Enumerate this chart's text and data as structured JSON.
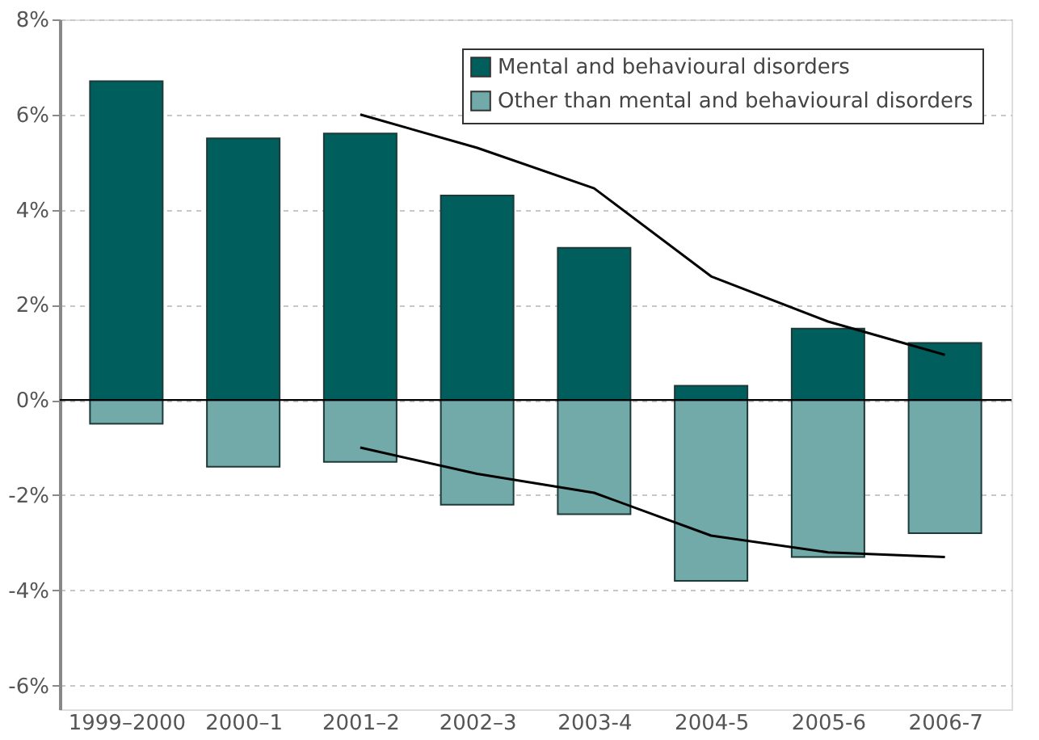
{
  "chart_data": {
    "type": "bar",
    "stacked": true,
    "categories": [
      "1999–2000",
      "2000–1",
      "2001–2",
      "2002–3",
      "2003-4",
      "2004-5",
      "2005-6",
      "2006-7"
    ],
    "series": [
      {
        "name": "Mental and behavioural disorders",
        "color": "#005f5c",
        "values": [
          6.7,
          5.5,
          5.6,
          4.3,
          3.2,
          0.3,
          1.5,
          1.2
        ]
      },
      {
        "name": "Other than mental and behavioural disorders",
        "color": "#72a9a9",
        "values": [
          -0.5,
          -1.4,
          -1.3,
          -2.2,
          -2.4,
          -3.8,
          -3.3,
          -2.8
        ]
      },
      {
        "type": "line",
        "color": "#000000",
        "values": [
          null,
          null,
          6.0,
          5.3,
          4.45,
          2.6,
          1.65,
          0.95
        ]
      },
      {
        "type": "line",
        "color": "#000000",
        "values": [
          null,
          null,
          -1.0,
          -1.55,
          -1.95,
          -2.85,
          -3.2,
          -3.3
        ]
      }
    ],
    "ylim": [
      -6.5,
      8
    ],
    "yticks": [
      {
        "value": -6,
        "label": "-6%"
      },
      {
        "value": -4,
        "label": "-4%"
      },
      {
        "value": -2,
        "label": "-2%"
      },
      {
        "value": 0,
        "label": "0%"
      },
      {
        "value": 2,
        "label": "2%"
      },
      {
        "value": 4,
        "label": "4%"
      },
      {
        "value": 6,
        "label": "6%"
      },
      {
        "value": 8,
        "label": "8%"
      }
    ],
    "grid": "y",
    "legend": "top right",
    "marker": "none",
    "line_style": "solid"
  }
}
